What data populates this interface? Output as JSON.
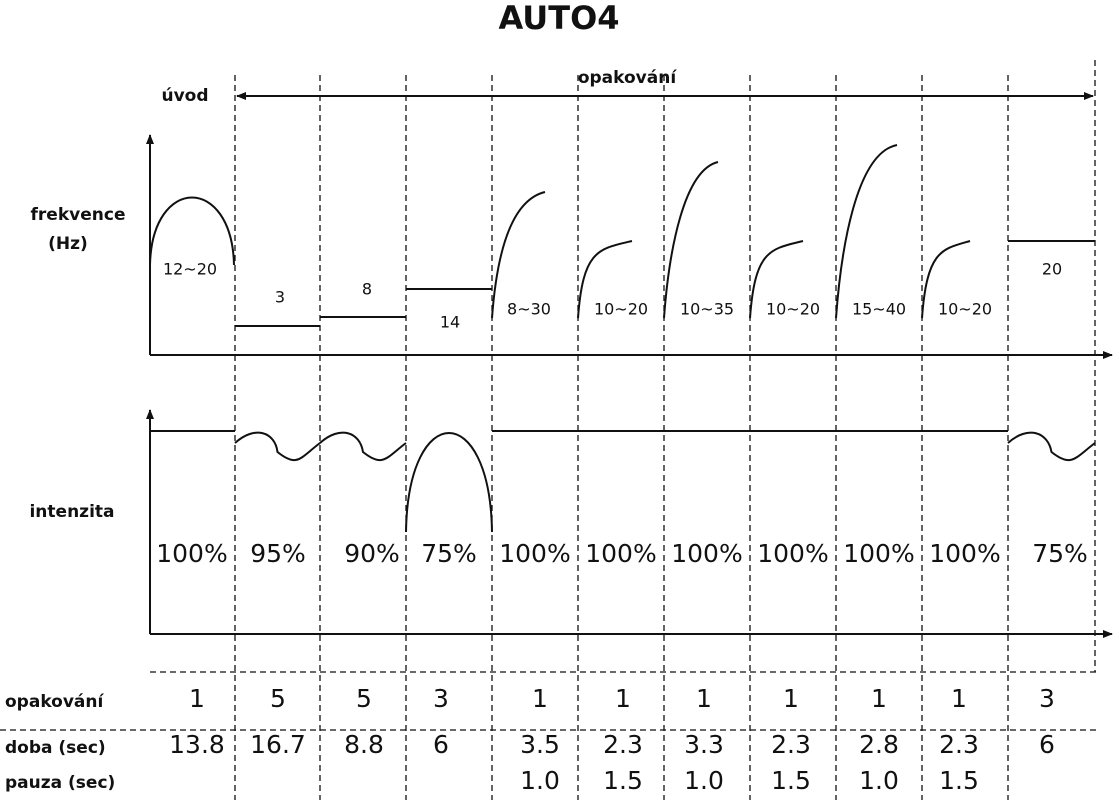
{
  "title": "AUTO4",
  "header": {
    "intro": "úvod",
    "repeat": "opakování"
  },
  "rows": {
    "frequency": [
      "frekvence",
      "(Hz)"
    ],
    "intensity": "intenzita",
    "repeats": "opakování",
    "duration": "doba (sec)",
    "pause": "pauza (sec)"
  },
  "segments": [
    {
      "frequency": "12~20",
      "intensity": "100%",
      "repeats": "1",
      "duration": "13.8"
    },
    {
      "frequency": "3",
      "intensity": "95%",
      "repeats": "5",
      "duration": "16.7"
    },
    {
      "frequency": "8",
      "intensity": "90%",
      "repeats": "5",
      "duration": "8.8"
    },
    {
      "frequency": "14",
      "intensity": "75%",
      "repeats": "3",
      "duration": "6"
    },
    {
      "frequency": "8~30",
      "intensity": "100%",
      "repeats": "1",
      "duration": "3.5",
      "pause": "1.0"
    },
    {
      "frequency": "10~20",
      "intensity": "100%",
      "repeats": "1",
      "duration": "2.3",
      "pause": "1.5"
    },
    {
      "frequency": "10~35",
      "intensity": "100%",
      "repeats": "1",
      "duration": "3.3",
      "pause": "1.0"
    },
    {
      "frequency": "10~20",
      "intensity": "100%",
      "repeats": "1",
      "duration": "2.3",
      "pause": "1.5"
    },
    {
      "frequency": "15~40",
      "intensity": "100%",
      "repeats": "1",
      "duration": "2.8",
      "pause": "1.0"
    },
    {
      "frequency": "10~20",
      "intensity": "100%",
      "repeats": "1",
      "duration": "2.3",
      "pause": "1.5"
    },
    {
      "frequency": "20",
      "intensity": "75%",
      "repeats": "3",
      "duration": "6"
    }
  ]
}
